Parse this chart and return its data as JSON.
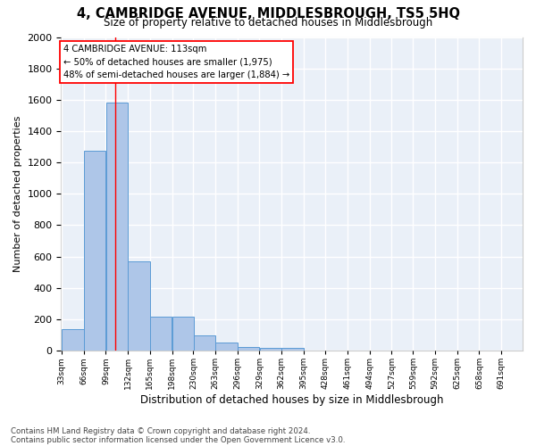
{
  "title": "4, CAMBRIDGE AVENUE, MIDDLESBROUGH, TS5 5HQ",
  "subtitle": "Size of property relative to detached houses in Middlesbrough",
  "xlabel": "Distribution of detached houses by size in Middlesbrough",
  "ylabel": "Number of detached properties",
  "bar_color": "#aec6e8",
  "bar_edge_color": "#5b9bd5",
  "background_color": "#eaf0f8",
  "grid_color": "#ffffff",
  "bins_left": [
    33,
    66,
    99,
    132,
    165,
    198,
    230,
    263,
    296,
    329,
    362,
    395,
    428,
    461,
    494,
    527,
    559,
    592,
    625,
    658
  ],
  "bin_width": 33,
  "bar_heights": [
    140,
    1275,
    1580,
    570,
    215,
    215,
    100,
    50,
    25,
    20,
    20,
    0,
    0,
    0,
    0,
    0,
    0,
    0,
    0,
    0
  ],
  "ylim": [
    0,
    2000
  ],
  "yticks": [
    0,
    200,
    400,
    600,
    800,
    1000,
    1200,
    1400,
    1600,
    1800,
    2000
  ],
  "red_line_x": 113,
  "annotation_text": "4 CAMBRIDGE AVENUE: 113sqm\n← 50% of detached houses are smaller (1,975)\n48% of semi-detached houses are larger (1,884) →",
  "footer_line1": "Contains HM Land Registry data © Crown copyright and database right 2024.",
  "footer_line2": "Contains public sector information licensed under the Open Government Licence v3.0.",
  "tick_labels": [
    "33sqm",
    "66sqm",
    "99sqm",
    "132sqm",
    "165sqm",
    "198sqm",
    "230sqm",
    "263sqm",
    "296sqm",
    "329sqm",
    "362sqm",
    "395sqm",
    "428sqm",
    "461sqm",
    "494sqm",
    "527sqm",
    "559sqm",
    "592sqm",
    "625sqm",
    "658sqm",
    "691sqm"
  ],
  "xtick_positions": [
    33,
    66,
    99,
    132,
    165,
    198,
    230,
    263,
    296,
    329,
    362,
    395,
    428,
    461,
    494,
    527,
    559,
    592,
    625,
    658,
    691
  ]
}
